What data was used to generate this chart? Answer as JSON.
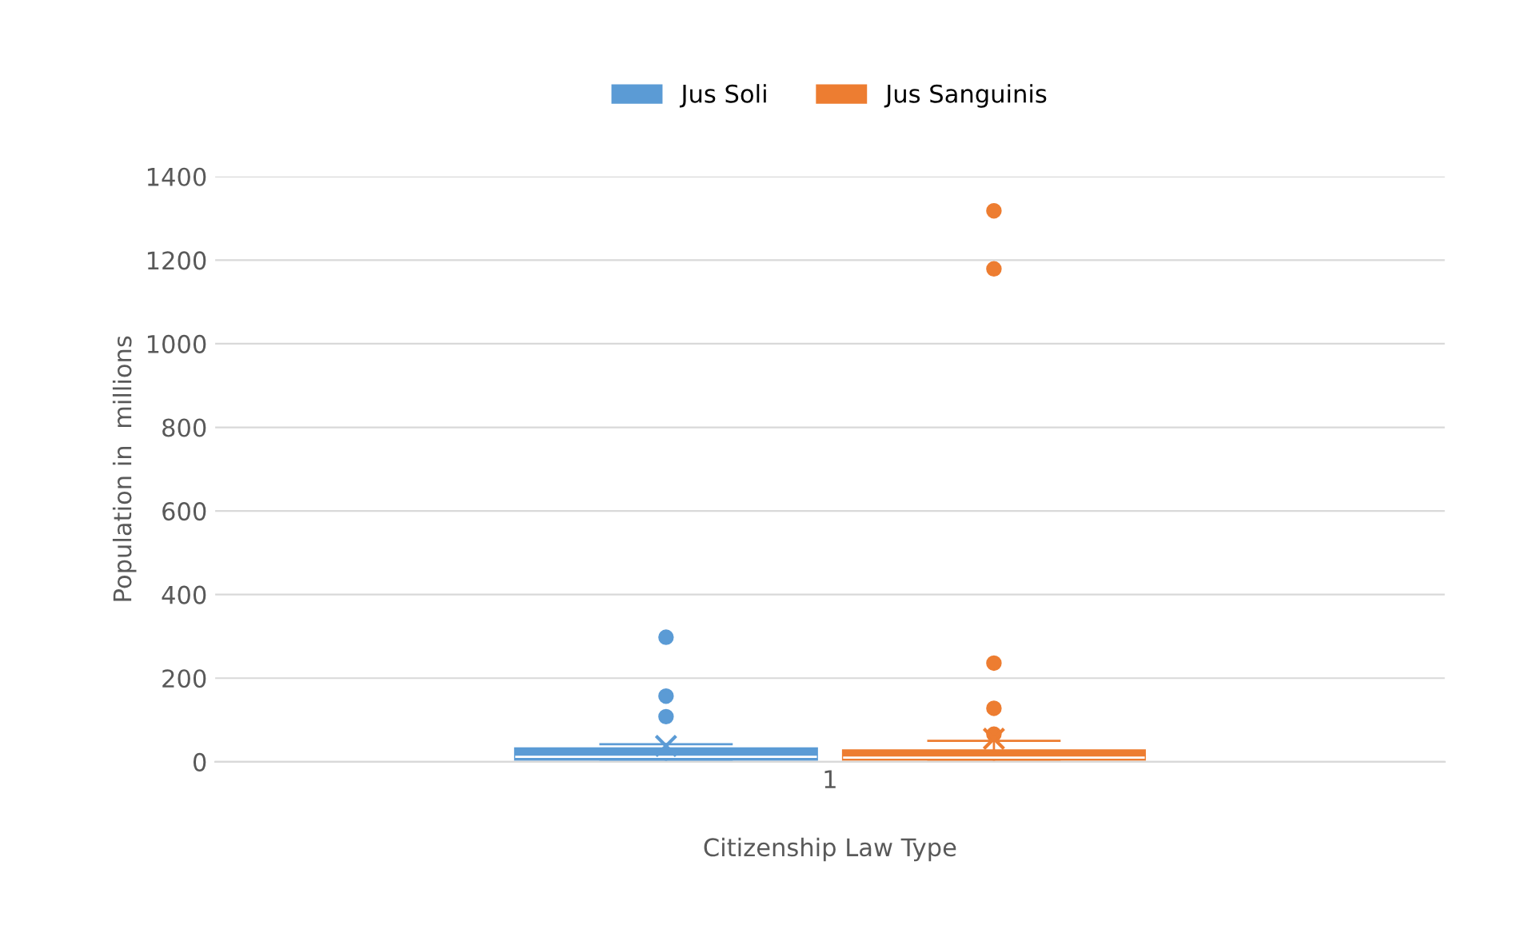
{
  "chart_data": {
    "type": "box",
    "categories": [
      "1"
    ],
    "xlabel": "Citizenship Law Type",
    "ylabel": "Population in  millions",
    "ylim": [
      0,
      1400
    ],
    "yticks": [
      0,
      200,
      400,
      600,
      800,
      1000,
      1200,
      1400
    ],
    "grid": "y",
    "legend": "top",
    "series": [
      {
        "name": "Jus Soli",
        "color": "#5b9bd5",
        "boxes": [
          {
            "low": 0,
            "q1": 5,
            "median": 12,
            "q3": 32,
            "high": 42,
            "mean": 38,
            "outliers": [
              298,
              157,
              108
            ]
          }
        ]
      },
      {
        "name": "Jus Sanguinis",
        "color": "#ed7d31",
        "boxes": [
          {
            "low": 0,
            "q1": 5,
            "median": 10,
            "q3": 27,
            "high": 50,
            "mean": 55,
            "outliers": [
              1318,
              1179,
              236,
              128,
              66
            ]
          }
        ]
      }
    ]
  }
}
